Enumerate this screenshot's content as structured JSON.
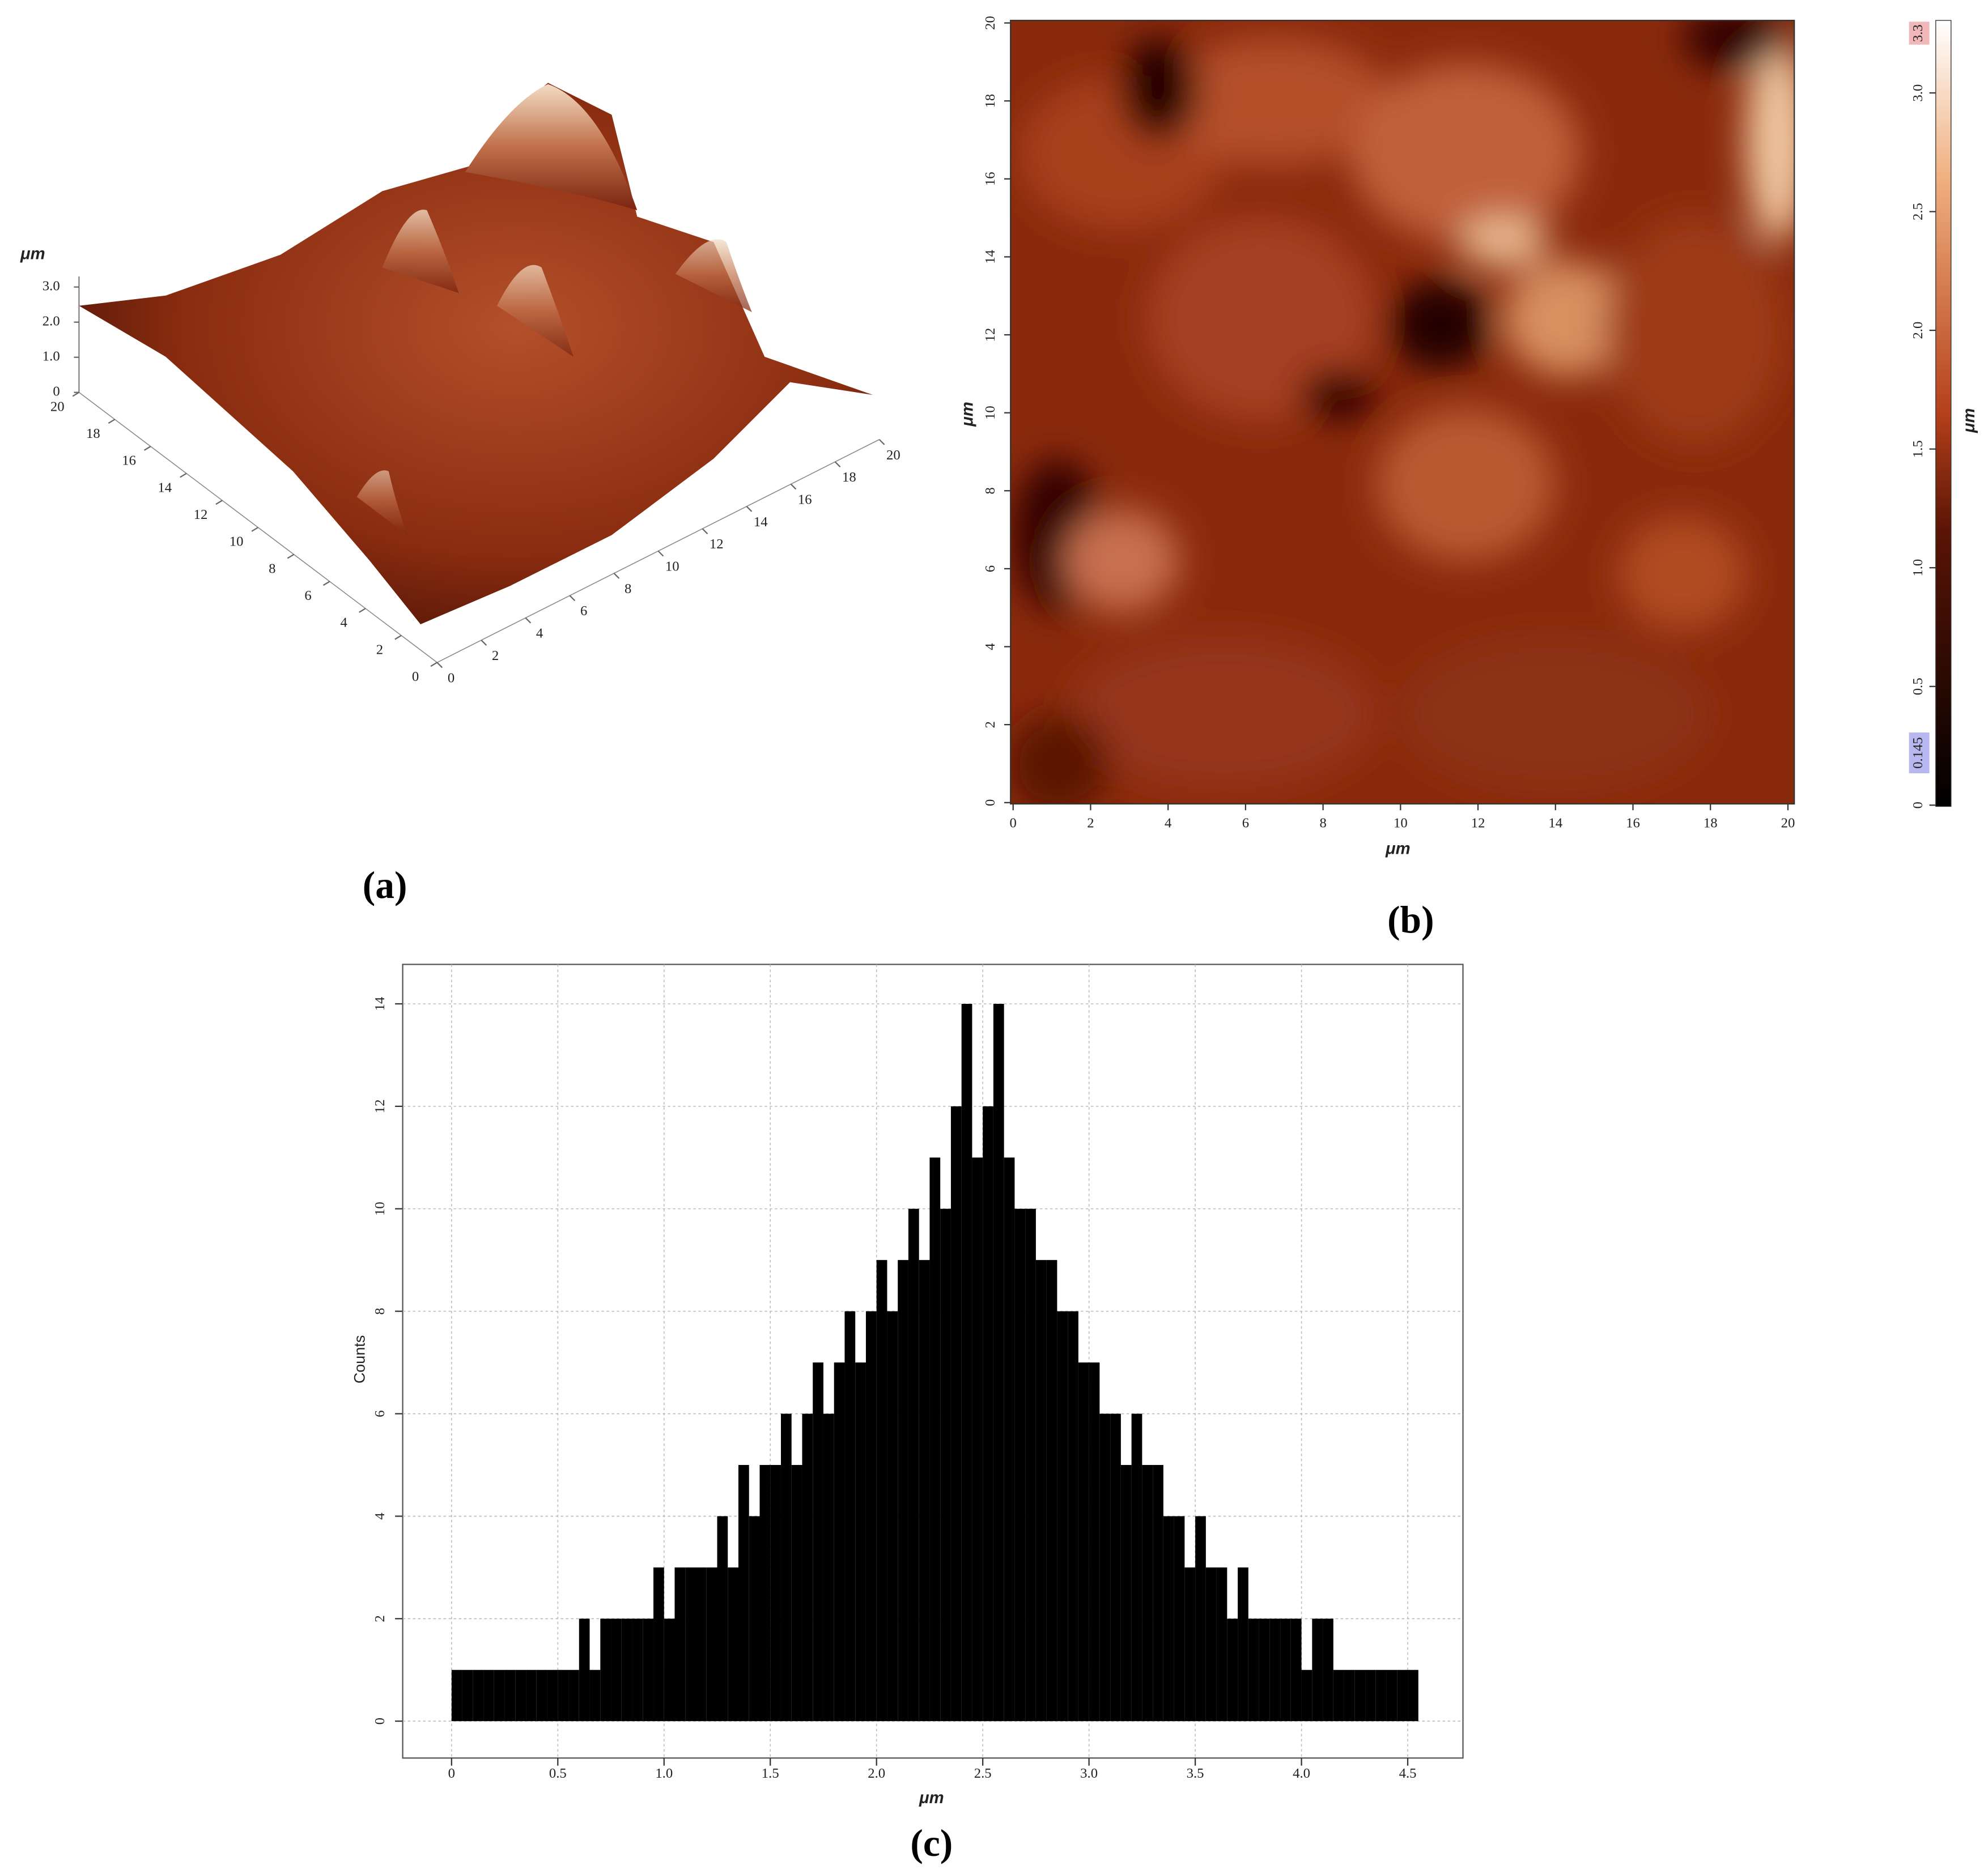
{
  "chart_data": [
    {
      "type": "surface3d",
      "panel_label": "(a)",
      "z_label": "μm",
      "xlim": [
        0,
        20
      ],
      "xticks": [
        0,
        2,
        4,
        6,
        8,
        10,
        12,
        14,
        16,
        18,
        20
      ],
      "ylim": [
        0,
        20
      ],
      "yticks": [
        0,
        2,
        4,
        6,
        8,
        10,
        12,
        14,
        16,
        18,
        20
      ],
      "zlim": [
        0,
        3.3
      ],
      "zticks": [
        0,
        {
          "value": 1,
          "label": "1.0"
        },
        {
          "value": 2,
          "label": "2.0"
        },
        {
          "value": 3,
          "label": "3.0"
        }
      ]
    },
    {
      "type": "heatmap",
      "panel_label": "(b)",
      "x_label": "μm",
      "y_label": "μm",
      "colorbar_label": "μm",
      "xlim": [
        0,
        20
      ],
      "xticks": [
        0,
        2,
        4,
        6,
        8,
        10,
        12,
        14,
        16,
        18,
        20
      ],
      "ylim": [
        0,
        20
      ],
      "yticks": [
        0,
        2,
        4,
        6,
        8,
        10,
        12,
        14,
        16,
        18,
        20
      ],
      "clim": [
        0,
        3.3
      ],
      "cticks": [
        0,
        0.5,
        {
          "value": 1,
          "label": "1.0"
        },
        1.5,
        {
          "value": 2,
          "label": "2.0"
        },
        2.5,
        {
          "value": 3,
          "label": "3.0"
        }
      ],
      "color_min": 0.145,
      "color_max": 3.3
    },
    {
      "type": "histogram",
      "panel_label": "(c)",
      "x_label": "μm",
      "y_label": "Counts",
      "color": "#000000",
      "grid": true,
      "xlim": [
        -0.23,
        4.76
      ],
      "xticks": [
        0,
        0.5,
        {
          "value": 1,
          "label": "1.0"
        },
        1.5,
        {
          "value": 2,
          "label": "2.0"
        },
        2.5,
        {
          "value": 3,
          "label": "3.0"
        },
        3.5,
        {
          "value": 4,
          "label": "4.0"
        },
        4.5
      ],
      "ylim": [
        -0.72,
        14.77
      ],
      "yticks": [
        0,
        2,
        4,
        6,
        8,
        10,
        12,
        14
      ],
      "bins": [
        0,
        0.05,
        0.1,
        0.15,
        0.2,
        0.25,
        0.3,
        0.35,
        0.4,
        0.45,
        0.5,
        0.55,
        0.6,
        0.65,
        0.7,
        0.75,
        0.8,
        0.85,
        0.9,
        0.95,
        1,
        1.05,
        1.1,
        1.15,
        1.2,
        1.25,
        1.3,
        1.35,
        1.4,
        1.45,
        1.5,
        1.55,
        1.6,
        1.65,
        1.7,
        1.75,
        1.8,
        1.85,
        1.9,
        1.95,
        2,
        2.05,
        2.1,
        2.15,
        2.2,
        2.25,
        2.3,
        2.35,
        2.4,
        2.45,
        2.5,
        2.55,
        2.6,
        2.65,
        2.7,
        2.75,
        2.8,
        2.85,
        2.9,
        2.95,
        3,
        3.05,
        3.1,
        3.15,
        3.2,
        3.25,
        3.3,
        3.35,
        3.4,
        3.45,
        3.5,
        3.55,
        3.6,
        3.65,
        3.7,
        3.75,
        3.8,
        3.85,
        3.9,
        3.95,
        4,
        4.05,
        4.1,
        4.15,
        4.2,
        4.25,
        4.3,
        4.35,
        4.4,
        4.45,
        4.5,
        4.55
      ],
      "values": [
        1,
        1,
        1,
        1,
        1,
        1,
        1,
        1,
        1,
        1,
        1,
        1,
        2,
        1,
        2,
        2,
        2,
        2,
        2,
        3,
        2,
        3,
        3,
        3,
        3,
        4,
        3,
        5,
        4,
        5,
        5,
        6,
        5,
        6,
        7,
        6,
        7,
        8,
        7,
        8,
        9,
        8,
        9,
        10,
        9,
        11,
        10,
        12,
        14,
        11,
        12,
        14,
        11,
        10,
        10,
        9,
        9,
        8,
        8,
        7,
        7,
        6,
        6,
        5,
        6,
        5,
        5,
        4,
        4,
        3,
        4,
        3,
        3,
        2,
        3,
        2,
        2,
        2,
        2,
        2,
        1,
        2,
        2,
        1,
        1,
        1,
        1,
        1,
        1,
        1,
        1
      ]
    }
  ]
}
